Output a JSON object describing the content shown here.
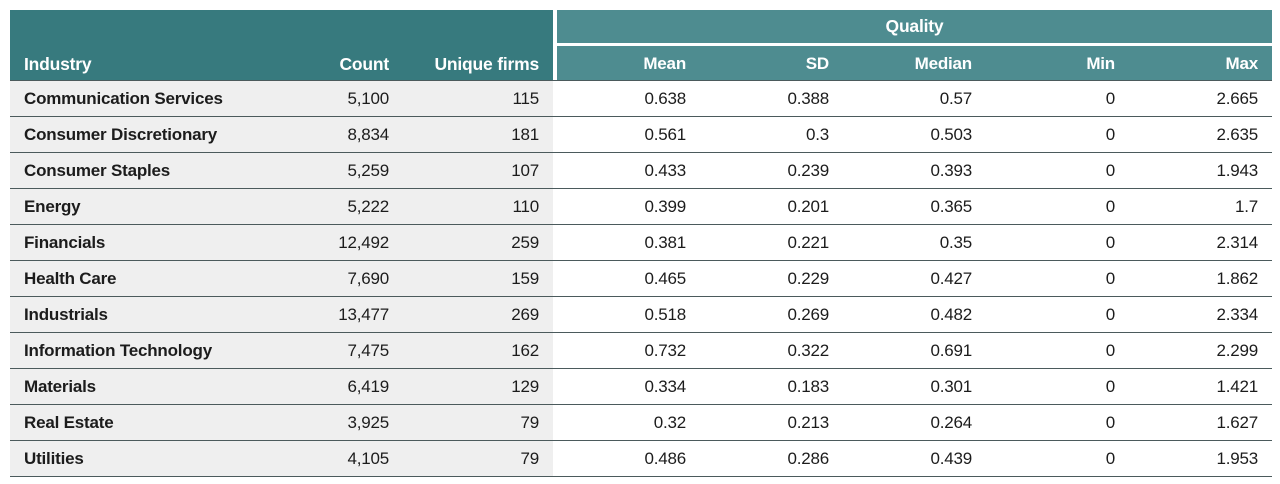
{
  "chart_data": {
    "type": "table",
    "group_header": "Quality",
    "columns": {
      "industry": "Industry",
      "count": "Count",
      "unique_firms": "Unique firms",
      "mean": "Mean",
      "sd": "SD",
      "median": "Median",
      "min": "Min",
      "max": "Max"
    },
    "rows": [
      {
        "industry": "Communication Services",
        "count": "5,100",
        "unique_firms": "115",
        "mean": "0.638",
        "sd": "0.388",
        "median": "0.57",
        "min": "0",
        "max": "2.665"
      },
      {
        "industry": "Consumer Discretionary",
        "count": "8,834",
        "unique_firms": "181",
        "mean": "0.561",
        "sd": "0.3",
        "median": "0.503",
        "min": "0",
        "max": "2.635"
      },
      {
        "industry": "Consumer Staples",
        "count": "5,259",
        "unique_firms": "107",
        "mean": "0.433",
        "sd": "0.239",
        "median": "0.393",
        "min": "0",
        "max": "1.943"
      },
      {
        "industry": "Energy",
        "count": "5,222",
        "unique_firms": "110",
        "mean": "0.399",
        "sd": "0.201",
        "median": "0.365",
        "min": "0",
        "max": "1.7"
      },
      {
        "industry": "Financials",
        "count": "12,492",
        "unique_firms": "259",
        "mean": "0.381",
        "sd": "0.221",
        "median": "0.35",
        "min": "0",
        "max": "2.314"
      },
      {
        "industry": "Health Care",
        "count": "7,690",
        "unique_firms": "159",
        "mean": "0.465",
        "sd": "0.229",
        "median": "0.427",
        "min": "0",
        "max": "1.862"
      },
      {
        "industry": "Industrials",
        "count": "13,477",
        "unique_firms": "269",
        "mean": "0.518",
        "sd": "0.269",
        "median": "0.482",
        "min": "0",
        "max": "2.334"
      },
      {
        "industry": "Information Technology",
        "count": "7,475",
        "unique_firms": "162",
        "mean": "0.732",
        "sd": "0.322",
        "median": "0.691",
        "min": "0",
        "max": "2.299"
      },
      {
        "industry": "Materials",
        "count": "6,419",
        "unique_firms": "129",
        "mean": "0.334",
        "sd": "0.183",
        "median": "0.301",
        "min": "0",
        "max": "1.421"
      },
      {
        "industry": "Real Estate",
        "count": "3,925",
        "unique_firms": "79",
        "mean": "0.32",
        "sd": "0.213",
        "median": "0.264",
        "min": "0",
        "max": "1.627"
      },
      {
        "industry": "Utilities",
        "count": "4,105",
        "unique_firms": "79",
        "mean": "0.486",
        "sd": "0.286",
        "median": "0.439",
        "min": "0",
        "max": "1.953"
      }
    ]
  },
  "colors": {
    "header_dark_teal": "#377a7e",
    "header_light_teal": "#4e8c90",
    "header_text": "#ffffff",
    "row_left_bg": "#efefef",
    "row_right_bg": "#ffffff",
    "row_border": "#4b5a5c",
    "body_text": "#1c1c1c"
  }
}
